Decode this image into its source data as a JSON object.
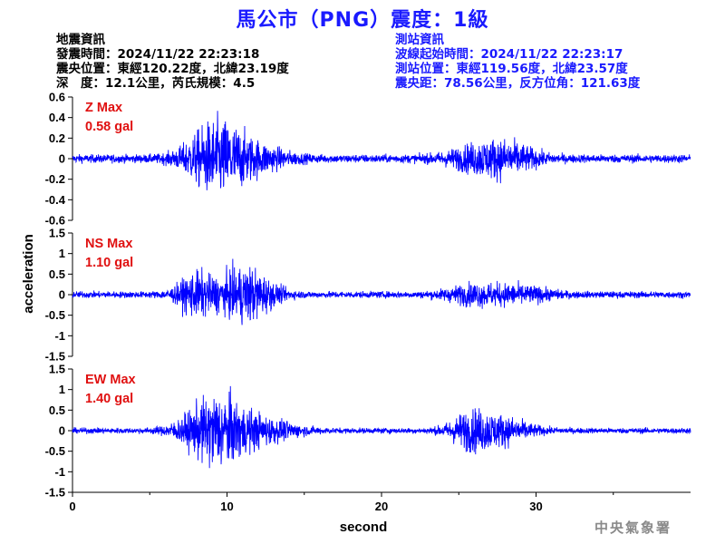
{
  "title": "馬公市（PNG）震度：1級",
  "quake_info": {
    "heading": "地震資訊",
    "origin_time": "發震時間：2024/11/22 22:23:18",
    "epicenter": "震央位置：東經120.22度，北緯23.19度",
    "depth_magnitude": "深　度：12.1公里，芮氏規模：4.5"
  },
  "station_info": {
    "heading": "測站資訊",
    "wave_start": "波線起始時間：2024/11/22 22:23:17",
    "station_location": "測站位置：東經119.56度，北緯23.57度",
    "distance": "震央距：78.56公里，反方位角：121.63度"
  },
  "footer": "中央氣象署",
  "colors": {
    "title": "#1a1aff",
    "trace": "#0000ff",
    "max_label": "#e01010",
    "station_info": "#1a1aff"
  },
  "chart_data": {
    "type": "line",
    "xlabel": "second",
    "ylabel": "acceleration",
    "xlim": [
      0,
      40
    ],
    "x_ticks": [
      0,
      10,
      20,
      30
    ],
    "x_tick_labels": [
      "0",
      "10",
      "20",
      "30"
    ],
    "panels": [
      {
        "name": "Z",
        "max_label": "Z Max",
        "max_value": "0.58 gal",
        "ylim": [
          -0.6,
          0.6
        ],
        "y_ticks": [
          -0.6,
          -0.4,
          -0.2,
          0,
          0.2,
          0.4,
          0.6
        ],
        "y_tick_labels": [
          "-0.6",
          "-0.4",
          "-0.2",
          "0",
          "0.2",
          "0.4",
          "0.6"
        ],
        "bursts": [
          {
            "t": 9.3,
            "amp": 0.5,
            "width": 1.4
          },
          {
            "t": 12.0,
            "amp": 0.15,
            "width": 1.5
          },
          {
            "t": 26.5,
            "amp": 0.18,
            "width": 1.6
          },
          {
            "t": 28.5,
            "amp": 0.13,
            "width": 1.3
          }
        ],
        "noise": 0.06
      },
      {
        "name": "NS",
        "max_label": "NS Max",
        "max_value": "1.10 gal",
        "ylim": [
          -1.5,
          1.5
        ],
        "y_ticks": [
          -1.5,
          -1,
          -0.5,
          0,
          0.5,
          1,
          1.5
        ],
        "y_tick_labels": [
          "-1.5",
          "-1",
          "-0.5",
          "0",
          "0.5",
          "1",
          "1.5"
        ],
        "bursts": [
          {
            "t": 8.0,
            "amp": 0.7,
            "width": 0.9
          },
          {
            "t": 11.2,
            "amp": 0.95,
            "width": 1.3
          },
          {
            "t": 26.0,
            "amp": 0.3,
            "width": 1.4
          },
          {
            "t": 29.0,
            "amp": 0.25,
            "width": 1.5
          }
        ],
        "noise": 0.12
      },
      {
        "name": "EW",
        "max_label": "EW Max",
        "max_value": "1.40 gal",
        "ylim": [
          -1.5,
          1.5
        ],
        "y_ticks": [
          -1.5,
          -1,
          -0.5,
          0,
          0.5,
          1,
          1.5
        ],
        "y_tick_labels": [
          "-1.5",
          "-1",
          "-0.5",
          "0",
          "0.5",
          "1",
          "1.5"
        ],
        "bursts": [
          {
            "t": 9.3,
            "amp": 1.25,
            "width": 1.5
          },
          {
            "t": 12.5,
            "amp": 0.35,
            "width": 1.6
          },
          {
            "t": 25.7,
            "amp": 0.55,
            "width": 1.0
          },
          {
            "t": 27.8,
            "amp": 0.45,
            "width": 1.4
          }
        ],
        "noise": 0.1
      }
    ]
  }
}
